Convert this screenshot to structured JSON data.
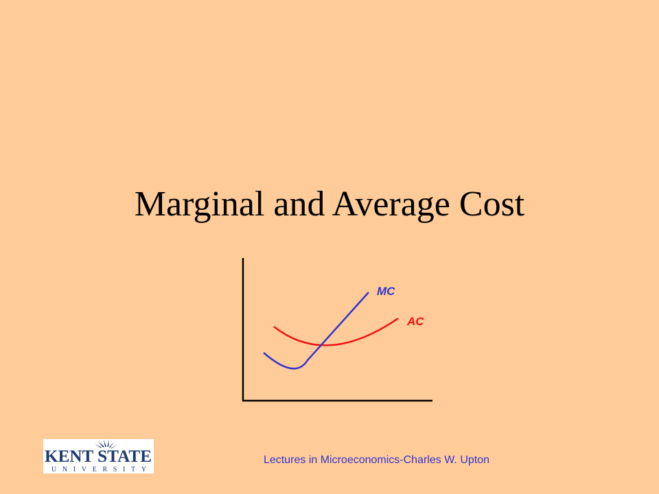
{
  "slide": {
    "title": "Marginal and Average Cost",
    "footer": "Lectures in Microeconomics-Charles W. Upton"
  },
  "diagram": {
    "curves": [
      {
        "name": "MC",
        "color": "#3333CC"
      },
      {
        "name": "AC",
        "color": "#EE1111"
      }
    ],
    "axis_color": "#000000"
  },
  "logo": {
    "line1": "KENT STATE",
    "line2": "UNIVERSITY",
    "color": "#1F3A6E"
  }
}
